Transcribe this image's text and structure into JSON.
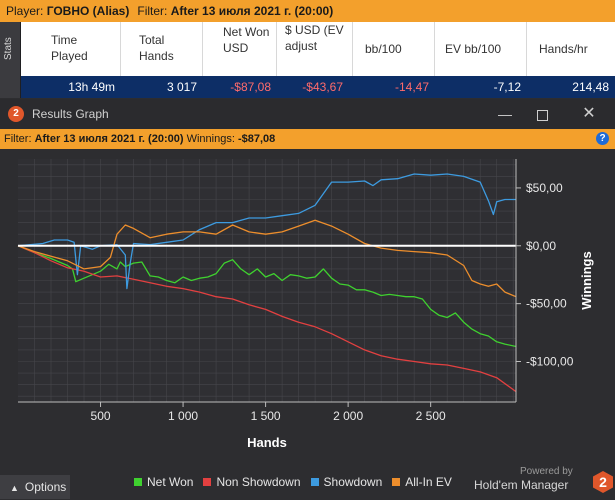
{
  "player_bar": {
    "player_label": "Player:",
    "player_name": "ГОВНО (Alias)",
    "filter_label": "Filter:",
    "filter_value": "After 13 июля 2021 г. (20:00)"
  },
  "stats": {
    "tab_label": "Stats",
    "headers": [
      "Time Played",
      "Total Hands",
      "Net Won USD",
      "$ USD (EV adjust",
      "bb/100",
      "EV bb/100",
      "Hands/hr"
    ],
    "row": {
      "time_played": "13h 49m",
      "total_hands": "3 017",
      "net_won": "-$87,08",
      "ev_adjusted": "-$43,67",
      "bb100": "-14,47",
      "ev_bb100": "-7,12",
      "hands_hr": "214,48"
    }
  },
  "results_window": {
    "title": "Results Graph",
    "badge": "2",
    "filter_label": "Filter:",
    "filter_value": "After 13 июля 2021 г. (20:00)",
    "winnings_label": "Winnings:",
    "winnings_value": "-$87,08",
    "help": "?"
  },
  "chart_data": {
    "type": "line",
    "xlabel": "Hands",
    "ylabel": "Winnings",
    "xlim": [
      0,
      3017
    ],
    "ylim": [
      -135,
      75
    ],
    "x_ticks": [
      500,
      1000,
      1500,
      2000,
      2500
    ],
    "x_tick_labels": [
      "500",
      "1 000",
      "1 500",
      "2 000",
      "2 500"
    ],
    "y_ticks": [
      50,
      0,
      -50,
      -100
    ],
    "y_tick_labels": [
      "$50,00",
      "$0,00",
      "-$50,00",
      "-$100,00"
    ],
    "grid": true,
    "zero_line": true,
    "legend_position": "bottom",
    "series": [
      {
        "name": "Net Won",
        "color": "#3fd12f",
        "points": [
          [
            0,
            0
          ],
          [
            100,
            -6
          ],
          [
            200,
            -11
          ],
          [
            300,
            -17
          ],
          [
            330,
            -20
          ],
          [
            350,
            -31
          ],
          [
            400,
            -28
          ],
          [
            450,
            -25
          ],
          [
            500,
            -22
          ],
          [
            550,
            -16
          ],
          [
            600,
            -20
          ],
          [
            620,
            -14
          ],
          [
            650,
            -18
          ],
          [
            700,
            -15
          ],
          [
            750,
            -14
          ],
          [
            800,
            -26
          ],
          [
            850,
            -27
          ],
          [
            900,
            -30
          ],
          [
            950,
            -32
          ],
          [
            1000,
            -27
          ],
          [
            1050,
            -30
          ],
          [
            1100,
            -28
          ],
          [
            1150,
            -27
          ],
          [
            1200,
            -24
          ],
          [
            1250,
            -15
          ],
          [
            1300,
            -12
          ],
          [
            1350,
            -20
          ],
          [
            1400,
            -25
          ],
          [
            1450,
            -20
          ],
          [
            1500,
            -27
          ],
          [
            1550,
            -24
          ],
          [
            1600,
            -30
          ],
          [
            1650,
            -25
          ],
          [
            1700,
            -26
          ],
          [
            1750,
            -28
          ],
          [
            1800,
            -27
          ],
          [
            1850,
            -20
          ],
          [
            1900,
            -28
          ],
          [
            1950,
            -33
          ],
          [
            2000,
            -34
          ],
          [
            2050,
            -38
          ],
          [
            2100,
            -38
          ],
          [
            2150,
            -40
          ],
          [
            2200,
            -43
          ],
          [
            2250,
            -42
          ],
          [
            2300,
            -43
          ],
          [
            2350,
            -44
          ],
          [
            2400,
            -44
          ],
          [
            2450,
            -46
          ],
          [
            2500,
            -55
          ],
          [
            2550,
            -60
          ],
          [
            2600,
            -62
          ],
          [
            2650,
            -58
          ],
          [
            2700,
            -66
          ],
          [
            2750,
            -72
          ],
          [
            2800,
            -76
          ],
          [
            2850,
            -78
          ],
          [
            2900,
            -83
          ],
          [
            2950,
            -85
          ],
          [
            3017,
            -87
          ]
        ]
      },
      {
        "name": "Non Showdown",
        "color": "#e24040",
        "points": [
          [
            0,
            0
          ],
          [
            100,
            -6
          ],
          [
            200,
            -13
          ],
          [
            300,
            -19
          ],
          [
            400,
            -22
          ],
          [
            500,
            -27
          ],
          [
            600,
            -26
          ],
          [
            700,
            -29
          ],
          [
            800,
            -32
          ],
          [
            900,
            -35
          ],
          [
            1000,
            -37
          ],
          [
            1100,
            -40
          ],
          [
            1200,
            -44
          ],
          [
            1300,
            -46
          ],
          [
            1400,
            -51
          ],
          [
            1500,
            -55
          ],
          [
            1600,
            -61
          ],
          [
            1700,
            -66
          ],
          [
            1800,
            -70
          ],
          [
            1900,
            -76
          ],
          [
            2000,
            -83
          ],
          [
            2100,
            -90
          ],
          [
            2200,
            -95
          ],
          [
            2300,
            -98
          ],
          [
            2400,
            -100
          ],
          [
            2500,
            -102
          ],
          [
            2600,
            -103
          ],
          [
            2700,
            -106
          ],
          [
            2800,
            -109
          ],
          [
            2900,
            -114
          ],
          [
            3017,
            -126
          ]
        ]
      },
      {
        "name": "Showdown",
        "color": "#3d9be0",
        "points": [
          [
            0,
            0
          ],
          [
            150,
            2
          ],
          [
            220,
            5
          ],
          [
            300,
            5
          ],
          [
            340,
            3
          ],
          [
            360,
            -25
          ],
          [
            380,
            0
          ],
          [
            450,
            -3
          ],
          [
            500,
            0
          ],
          [
            600,
            1
          ],
          [
            650,
            -8
          ],
          [
            660,
            -37
          ],
          [
            680,
            -15
          ],
          [
            700,
            2
          ],
          [
            800,
            1
          ],
          [
            900,
            3
          ],
          [
            1000,
            5
          ],
          [
            1100,
            14
          ],
          [
            1200,
            20
          ],
          [
            1300,
            20
          ],
          [
            1400,
            24
          ],
          [
            1500,
            24
          ],
          [
            1600,
            26
          ],
          [
            1700,
            28
          ],
          [
            1800,
            35
          ],
          [
            1900,
            55
          ],
          [
            2000,
            55
          ],
          [
            2100,
            56
          ],
          [
            2150,
            52
          ],
          [
            2200,
            57
          ],
          [
            2300,
            58
          ],
          [
            2400,
            62
          ],
          [
            2500,
            61
          ],
          [
            2600,
            62
          ],
          [
            2700,
            60
          ],
          [
            2800,
            55
          ],
          [
            2850,
            39
          ],
          [
            2880,
            27
          ],
          [
            2900,
            38
          ],
          [
            2950,
            40
          ],
          [
            3017,
            40
          ]
        ]
      },
      {
        "name": "All-In EV",
        "color": "#ed8e2c",
        "points": [
          [
            0,
            0
          ],
          [
            100,
            -5
          ],
          [
            200,
            -9
          ],
          [
            300,
            -13
          ],
          [
            400,
            -20
          ],
          [
            500,
            -18
          ],
          [
            560,
            -10
          ],
          [
            600,
            10
          ],
          [
            650,
            18
          ],
          [
            700,
            15
          ],
          [
            800,
            7
          ],
          [
            900,
            10
          ],
          [
            1000,
            12
          ],
          [
            1100,
            12
          ],
          [
            1200,
            10
          ],
          [
            1300,
            18
          ],
          [
            1400,
            12
          ],
          [
            1500,
            10
          ],
          [
            1600,
            12
          ],
          [
            1700,
            17
          ],
          [
            1800,
            22
          ],
          [
            1900,
            17
          ],
          [
            2000,
            10
          ],
          [
            2100,
            2
          ],
          [
            2200,
            -2
          ],
          [
            2300,
            -4
          ],
          [
            2400,
            -5
          ],
          [
            2500,
            -6
          ],
          [
            2600,
            -8
          ],
          [
            2700,
            -17
          ],
          [
            2750,
            -30
          ],
          [
            2800,
            -33
          ],
          [
            2850,
            -35
          ],
          [
            2900,
            -33
          ],
          [
            2950,
            -40
          ],
          [
            3017,
            -44
          ]
        ]
      }
    ]
  },
  "bottom_bar": {
    "options_label": "Options",
    "powered_by": "Powered by",
    "brand": "Hold'em Manager",
    "brand_logo": "2"
  }
}
